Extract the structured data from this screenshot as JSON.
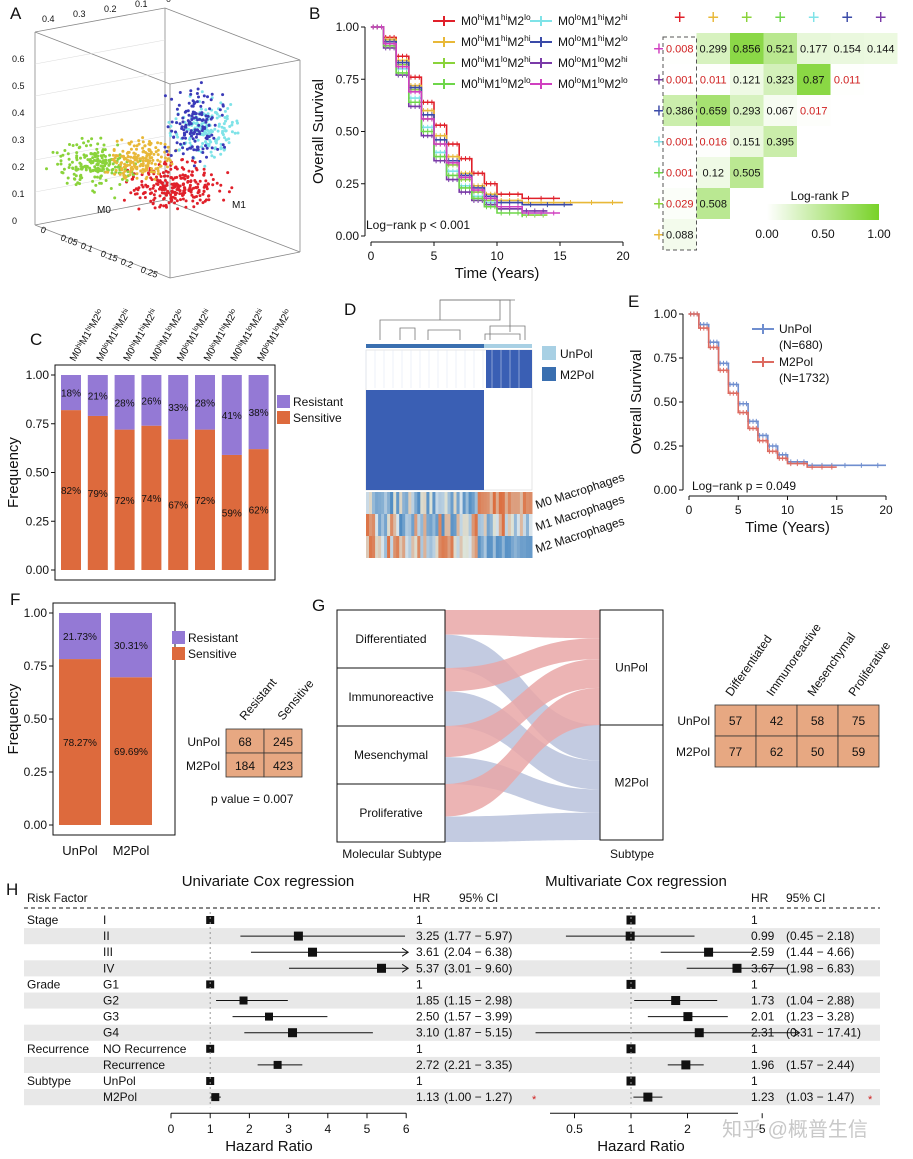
{
  "labels": {
    "A": "A",
    "B": "B",
    "C": "C",
    "D": "D",
    "E": "E",
    "F": "F",
    "G": "G",
    "H": "H"
  },
  "watermark": "知乎 @概普生信",
  "chart_data": [
    {
      "panel": "A",
      "type": "scatter",
      "axis_names": [
        "M0",
        "M1"
      ],
      "top_ticks": [
        "0.4",
        "0.3",
        "0.2",
        "0.1",
        "0"
      ],
      "left_ticks": [
        "0.6",
        "0.5",
        "0.4",
        "0.3",
        "0.2",
        "0.1",
        "0"
      ],
      "bottom_ticks": [
        "0",
        "0.05",
        "0.1",
        "0.15",
        "0.2",
        "0.25"
      ],
      "colors": {
        "red": "#e0202a",
        "green": "#8ad33a",
        "orange": "#e8b838",
        "cyan": "#7fe3e8",
        "blue": "#3a3ab8"
      }
    },
    {
      "panel": "B",
      "type": "line",
      "ylabel": "Overall Survival",
      "xlabel": "Time (Years)",
      "xticks": [
        "0",
        "5",
        "10",
        "15",
        "20"
      ],
      "yticks": [
        "0.00",
        "0.25",
        "0.50",
        "0.75",
        "1.00"
      ],
      "xlim": [
        0,
        20
      ],
      "ylim": [
        0,
        1
      ],
      "annotation": "Log−rank p < 0.001",
      "legend": [
        {
          "p": "M0",
          "a": "hi",
          "q": "M1",
          "b": "hi",
          "r": "M2",
          "c": "lo",
          "color": "#e0202a"
        },
        {
          "p": "M0",
          "a": "lo",
          "q": "M1",
          "b": "hi",
          "r": "M2",
          "c": "hi",
          "color": "#7fe3e8"
        },
        {
          "p": "M0",
          "a": "hi",
          "q": "M1",
          "b": "hi",
          "r": "M2",
          "c": "hi",
          "color": "#e8b838"
        },
        {
          "p": "M0",
          "a": "lo",
          "q": "M1",
          "b": "hi",
          "r": "M2",
          "c": "lo",
          "color": "#3a4aa8"
        },
        {
          "p": "M0",
          "a": "hi",
          "q": "M1",
          "b": "lo",
          "r": "M2",
          "c": "hi",
          "color": "#8ad33a"
        },
        {
          "p": "M0",
          "a": "lo",
          "q": "M1",
          "b": "lo",
          "r": "M2",
          "c": "hi",
          "color": "#7a3aa8"
        },
        {
          "p": "M0",
          "a": "hi",
          "q": "M1",
          "b": "lo",
          "r": "M2",
          "c": "lo",
          "color": "#6ed64a"
        },
        {
          "p": "M0",
          "a": "lo",
          "q": "M1",
          "b": "lo",
          "r": "M2",
          "c": "lo",
          "color": "#d040c0"
        }
      ],
      "series": [
        {
          "color": "#e0202a",
          "x": [
            0,
            1,
            2,
            3,
            4,
            5,
            6,
            7,
            8,
            9,
            10,
            12,
            15
          ],
          "y": [
            1,
            0.95,
            0.86,
            0.76,
            0.64,
            0.53,
            0.44,
            0.37,
            0.3,
            0.25,
            0.2,
            0.18,
            0.18
          ]
        },
        {
          "color": "#e8b838",
          "x": [
            0,
            1,
            2,
            3,
            4,
            5,
            6,
            7,
            8,
            9,
            10,
            12,
            15,
            20
          ],
          "y": [
            1,
            0.94,
            0.84,
            0.72,
            0.6,
            0.48,
            0.38,
            0.3,
            0.24,
            0.2,
            0.17,
            0.16,
            0.16,
            0.16
          ]
        },
        {
          "color": "#8ad33a",
          "x": [
            0,
            1,
            2,
            3,
            4,
            5,
            6,
            7,
            8,
            9,
            10,
            12,
            14
          ],
          "y": [
            1,
            0.93,
            0.82,
            0.7,
            0.56,
            0.44,
            0.34,
            0.27,
            0.21,
            0.17,
            0.13,
            0.1,
            0.1
          ]
        },
        {
          "color": "#7fe3e8",
          "x": [
            0,
            1,
            2,
            3,
            4,
            5,
            6,
            7,
            8,
            9,
            10,
            12,
            14
          ],
          "y": [
            1,
            0.92,
            0.8,
            0.66,
            0.52,
            0.4,
            0.31,
            0.24,
            0.19,
            0.16,
            0.13,
            0.11,
            0.11
          ]
        },
        {
          "color": "#3a4aa8",
          "x": [
            0,
            1,
            2,
            3,
            4,
            5,
            6,
            7,
            8,
            9,
            10,
            12,
            16
          ],
          "y": [
            1,
            0.93,
            0.83,
            0.71,
            0.58,
            0.46,
            0.36,
            0.29,
            0.23,
            0.19,
            0.16,
            0.15,
            0.15
          ]
        },
        {
          "color": "#7a3aa8",
          "x": [
            0,
            1,
            2,
            3,
            4,
            5,
            6,
            7,
            8,
            9,
            10,
            12,
            14
          ],
          "y": [
            1,
            0.9,
            0.77,
            0.62,
            0.48,
            0.36,
            0.27,
            0.21,
            0.17,
            0.15,
            0.13,
            0.12,
            0.12
          ]
        },
        {
          "color": "#6ed64a",
          "x": [
            0,
            1,
            2,
            3,
            4,
            5,
            6,
            7,
            8,
            9,
            10,
            12
          ],
          "y": [
            1,
            0.91,
            0.78,
            0.64,
            0.5,
            0.38,
            0.29,
            0.23,
            0.18,
            0.14,
            0.11,
            0.09
          ]
        },
        {
          "color": "#d040c0",
          "x": [
            0,
            1,
            2,
            3,
            4,
            5,
            6,
            7,
            8,
            9,
            10,
            12,
            15
          ],
          "y": [
            1,
            0.92,
            0.81,
            0.69,
            0.56,
            0.44,
            0.35,
            0.28,
            0.22,
            0.18,
            0.14,
            0.11,
            0.11
          ]
        }
      ]
    },
    {
      "panel": "B-matrix",
      "type": "heatmap",
      "header_colors": [
        "#e0202a",
        "#e8b838",
        "#8ad33a",
        "#6ed64a",
        "#7fe3e8",
        "#3a4aa8",
        "#7a3aa8"
      ],
      "row_colors": [
        "#d040c0",
        "#7a3aa8",
        "#3a4aa8",
        "#7fe3e8",
        "#6ed64a",
        "#8ad33a",
        "#e8b838"
      ],
      "rows": [
        [
          "0.008",
          "0.299",
          "0.856",
          "0.521",
          "0.177",
          "0.154",
          "0.144"
        ],
        [
          "0.001",
          "0.011",
          "0.121",
          "0.323",
          "0.87",
          "0.011"
        ],
        [
          "0.386",
          "0.659",
          "0.293",
          "0.067",
          "0.017"
        ],
        [
          "0.001",
          "0.016",
          "0.151",
          "0.395"
        ],
        [
          "0.001",
          "0.12",
          "0.505"
        ],
        [
          "0.029",
          "0.508"
        ],
        [
          "0.088"
        ]
      ],
      "legend_title": "Log-rank P",
      "legend_ticks": [
        "0.00",
        "0.50",
        "1.00"
      ]
    },
    {
      "panel": "C",
      "type": "bar",
      "ylabel": "Frequency",
      "yticks": [
        "0.00",
        "0.25",
        "0.50",
        "0.75",
        "1.00"
      ],
      "ylim": [
        0,
        1
      ],
      "categories": [
        {
          "a": "hi",
          "b": "hi",
          "c": "lo"
        },
        {
          "a": "lo",
          "b": "hi",
          "c": "hi"
        },
        {
          "a": "hi",
          "b": "hi",
          "c": "hi"
        },
        {
          "a": "hi",
          "b": "lo",
          "c": "lo"
        },
        {
          "a": "lo",
          "b": "lo",
          "c": "hi"
        },
        {
          "a": "lo",
          "b": "hi",
          "c": "lo"
        },
        {
          "a": "hi",
          "b": "lo",
          "c": "hi"
        },
        {
          "a": "lo",
          "b": "lo",
          "c": "lo"
        }
      ],
      "series": [
        {
          "name": "Sensitive",
          "color": "#dd6a3d",
          "values": [
            0.82,
            0.79,
            0.72,
            0.74,
            0.67,
            0.72,
            0.59,
            0.62
          ],
          "labels": [
            "82%",
            "79%",
            "72%",
            "74%",
            "67%",
            "72%",
            "59%",
            "62%"
          ]
        },
        {
          "name": "Resistant",
          "color": "#9479d5",
          "values": [
            0.18,
            0.21,
            0.28,
            0.26,
            0.33,
            0.28,
            0.41,
            0.38
          ],
          "labels": [
            "18%",
            "21%",
            "28%",
            "26%",
            "33%",
            "28%",
            "41%",
            "38%"
          ]
        }
      ],
      "legend": [
        "Resistant",
        "Sensitive"
      ]
    },
    {
      "panel": "D",
      "type": "heatmap",
      "legend": [
        {
          "name": "UnPol",
          "color": "#a8d0e4"
        },
        {
          "name": "M2Pol",
          "color": "#3a6fb0"
        }
      ],
      "row_labels": [
        "M0 Macrophages",
        "M1 Macrophages",
        "M2 Macrophages"
      ]
    },
    {
      "panel": "E",
      "type": "line",
      "ylabel": "Overall Survival",
      "xlabel": "Time (Years)",
      "xticks": [
        "0",
        "5",
        "10",
        "15",
        "20"
      ],
      "yticks": [
        "0.00",
        "0.25",
        "0.50",
        "0.75",
        "1.00"
      ],
      "xlim": [
        0,
        20
      ],
      "ylim": [
        0,
        1
      ],
      "annotation": "Log−rank p = 0.049",
      "series": [
        {
          "name": "UnPol",
          "n": "(N=680)",
          "color": "#6f8ecf",
          "x": [
            0,
            1,
            2,
            3,
            4,
            5,
            6,
            7,
            8,
            9,
            10,
            12,
            15,
            20
          ],
          "y": [
            1,
            0.94,
            0.84,
            0.72,
            0.6,
            0.49,
            0.39,
            0.31,
            0.25,
            0.2,
            0.16,
            0.14,
            0.14,
            0.14
          ]
        },
        {
          "name": "M2Pol",
          "n": "(N=1732)",
          "color": "#dd6a60",
          "x": [
            0,
            1,
            2,
            3,
            4,
            5,
            6,
            7,
            8,
            9,
            10,
            12,
            15
          ],
          "y": [
            1,
            0.92,
            0.81,
            0.68,
            0.55,
            0.44,
            0.35,
            0.28,
            0.22,
            0.18,
            0.15,
            0.13,
            0.13
          ]
        }
      ]
    },
    {
      "panel": "F",
      "type": "bar",
      "ylabel": "Frequency",
      "yticks": [
        "0.00",
        "0.25",
        "0.50",
        "0.75",
        "1.00"
      ],
      "ylim": [
        0,
        1
      ],
      "categories": [
        "UnPol",
        "M2Pol"
      ],
      "series": [
        {
          "name": "Sensitive",
          "color": "#dd6a3d",
          "values": [
            0.7827,
            0.6969
          ],
          "labels": [
            "78.27%",
            "69.69%"
          ]
        },
        {
          "name": "Resistant",
          "color": "#9479d5",
          "values": [
            0.2173,
            0.3031
          ],
          "labels": [
            "21.73%",
            "30.31%"
          ]
        }
      ],
      "legend": [
        "Resistant",
        "Sensitive"
      ],
      "table": {
        "cols": [
          "Resistant",
          "Sensitive"
        ],
        "rows": [
          {
            "name": "UnPol",
            "values": [
              "68",
              "245"
            ]
          },
          {
            "name": "M2Pol",
            "values": [
              "184",
              "423"
            ]
          }
        ]
      },
      "pvalue": "p value = 0.007"
    },
    {
      "panel": "G",
      "type": "table",
      "left_nodes": [
        "Differentiated",
        "Immunoreactive",
        "Mesenchymal",
        "Proliferative"
      ],
      "right_nodes": [
        "UnPol",
        "M2Pol"
      ],
      "left_title": "Molecular Subtype",
      "right_title": "Subtype",
      "table": {
        "cols": [
          "Differentiated",
          "Immunoreactive",
          "Mesenchymal",
          "Proliferative"
        ],
        "rows": [
          {
            "name": "UnPol",
            "values": [
              "57",
              "42",
              "58",
              "75"
            ]
          },
          {
            "name": "M2Pol",
            "values": [
              "77",
              "62",
              "50",
              "59"
            ]
          }
        ]
      }
    },
    {
      "panel": "H",
      "type": "scatter",
      "title_uni": "Univariate Cox regression",
      "title_multi": "Multivariate Cox regression",
      "col_risk": "Risk Factor",
      "col_hr": "HR",
      "col_ci": "95% CI",
      "xlabel": "Hazard Ratio",
      "uni_ticks": [
        "0",
        "1",
        "2",
        "3",
        "4",
        "5",
        "6"
      ],
      "multi_ticks": [
        "0.5",
        "1",
        "2",
        "5"
      ],
      "rows": [
        {
          "factor": "Stage",
          "level": "I",
          "uni_hr": "1",
          "uni_ci": "",
          "u": [
            1,
            1,
            1
          ],
          "multi_hr": "1",
          "multi_ci": "",
          "m": [
            1,
            1,
            1
          ]
        },
        {
          "factor": "",
          "level": "II",
          "uni_hr": "3.25",
          "uni_ci": "(1.77 − 5.97)",
          "u": [
            3.25,
            1.77,
            5.97
          ],
          "multi_hr": "0.99",
          "multi_ci": "(0.45 − 2.18)",
          "m": [
            0.99,
            0.45,
            2.18
          ]
        },
        {
          "factor": "",
          "level": "III",
          "uni_hr": "3.61",
          "uni_ci": "(2.04 − 6.38)",
          "u": [
            3.61,
            2.04,
            6.38
          ],
          "multi_hr": "2.59",
          "multi_ci": "(1.44 − 4.66)",
          "m": [
            2.59,
            1.44,
            4.66
          ]
        },
        {
          "factor": "",
          "level": "IV",
          "uni_hr": "5.37",
          "uni_ci": "(3.01 − 9.60)",
          "u": [
            5.37,
            3.01,
            9.6
          ],
          "multi_hr": "3.67",
          "multi_ci": "(1.98 − 6.83)",
          "m": [
            3.67,
            1.98,
            6.83
          ]
        },
        {
          "factor": "Grade",
          "level": "G1",
          "uni_hr": "1",
          "uni_ci": "",
          "u": [
            1,
            1,
            1
          ],
          "multi_hr": "1",
          "multi_ci": "",
          "m": [
            1,
            1,
            1
          ]
        },
        {
          "factor": "",
          "level": "G2",
          "uni_hr": "1.85",
          "uni_ci": "(1.15 − 2.98)",
          "u": [
            1.85,
            1.15,
            2.98
          ],
          "multi_hr": "1.73",
          "multi_ci": "(1.04 − 2.88)",
          "m": [
            1.73,
            1.04,
            2.88
          ]
        },
        {
          "factor": "",
          "level": "G3",
          "uni_hr": "2.50",
          "uni_ci": "(1.57 − 3.99)",
          "u": [
            2.5,
            1.57,
            3.99
          ],
          "multi_hr": "2.01",
          "multi_ci": "(1.23 − 3.28)",
          "m": [
            2.01,
            1.23,
            3.28
          ]
        },
        {
          "factor": "",
          "level": "G4",
          "uni_hr": "3.10",
          "uni_ci": "(1.87 − 5.15)",
          "u": [
            3.1,
            1.87,
            5.15
          ],
          "multi_hr": "2.31",
          "multi_ci": "(0.31 − 17.41)",
          "m": [
            2.31,
            0.31,
            17.41
          ]
        },
        {
          "factor": "Recurrence",
          "level": "NO Recurrence",
          "uni_hr": "1",
          "uni_ci": "",
          "u": [
            1,
            1,
            1
          ],
          "multi_hr": "1",
          "multi_ci": "",
          "m": [
            1,
            1,
            1
          ]
        },
        {
          "factor": "",
          "level": "Recurrence",
          "uni_hr": "2.72",
          "uni_ci": "(2.21 − 3.35)",
          "u": [
            2.72,
            2.21,
            3.35
          ],
          "multi_hr": "1.96",
          "multi_ci": "(1.57 − 2.44)",
          "m": [
            1.96,
            1.57,
            2.44
          ]
        },
        {
          "factor": "Subtype",
          "level": "UnPol",
          "uni_hr": "1",
          "uni_ci": "",
          "u": [
            1,
            1,
            1
          ],
          "multi_hr": "1",
          "multi_ci": "",
          "m": [
            1,
            1,
            1
          ]
        },
        {
          "factor": "",
          "level": "M2Pol",
          "uni_hr": "1.13",
          "uni_ci": "(1.00 − 1.27)",
          "u": [
            1.13,
            1.0,
            1.27
          ],
          "multi_hr": "1.23",
          "multi_ci": "(1.03 − 1.47)",
          "m": [
            1.23,
            1.03,
            1.47
          ],
          "star": "*"
        }
      ]
    }
  ]
}
